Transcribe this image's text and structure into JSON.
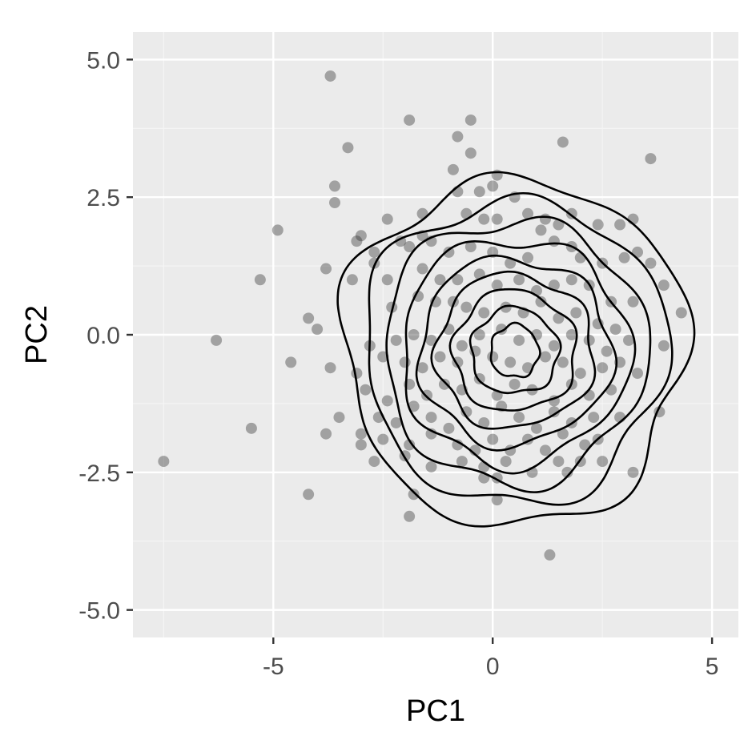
{
  "chart_data": {
    "type": "scatter",
    "xlabel": "PC1",
    "ylabel": "PC2",
    "xlim": [
      -8.2,
      5.6
    ],
    "ylim": [
      -5.5,
      5.5
    ],
    "x_ticks": [
      -5,
      0,
      5
    ],
    "x_tick_labels": [
      "-5",
      "0",
      "5"
    ],
    "y_ticks": [
      -5,
      -2.5,
      0,
      2.5,
      5
    ],
    "y_tick_labels": [
      "-5.0",
      "-2.5",
      "0.0",
      "2.5",
      "5.0"
    ],
    "grid": true,
    "legend": "none",
    "colors": {
      "panel_background": "#ebebeb",
      "grid_major": "#ffffff",
      "grid_minor": "#f5f5f5",
      "points": "#333333",
      "contours": "#000000",
      "tick_label": "#4d4d4d",
      "tick_mark": "#333333"
    },
    "point_opacity": 0.4,
    "density_center": [
      0.5,
      -0.3
    ],
    "contour_levels": [
      {
        "rx": 3.9,
        "ry": 3.15
      },
      {
        "rx": 3.45,
        "ry": 2.75
      },
      {
        "rx": 3.0,
        "ry": 2.4
      },
      {
        "rx": 2.6,
        "ry": 2.05
      },
      {
        "rx": 2.2,
        "ry": 1.7
      },
      {
        "rx": 1.8,
        "ry": 1.4
      },
      {
        "rx": 1.4,
        "ry": 1.1
      },
      {
        "rx": 1.0,
        "ry": 0.78
      },
      {
        "rx": 0.55,
        "ry": 0.48
      }
    ],
    "points": [
      [
        -3.7,
        4.7
      ],
      [
        -1.9,
        3.9
      ],
      [
        -0.5,
        3.9
      ],
      [
        -0.8,
        3.6
      ],
      [
        -0.5,
        3.3
      ],
      [
        -3.3,
        3.4
      ],
      [
        1.6,
        3.5
      ],
      [
        3.6,
        3.2
      ],
      [
        -0.9,
        3.0
      ],
      [
        0.1,
        2.9
      ],
      [
        -3.6,
        2.7
      ],
      [
        -0.3,
        2.6
      ],
      [
        -0.8,
        2.6
      ],
      [
        0.0,
        2.7
      ],
      [
        0.5,
        2.5
      ],
      [
        -3.6,
        2.4
      ],
      [
        -4.9,
        1.9
      ],
      [
        -5.3,
        1.0
      ],
      [
        -3.8,
        1.2
      ],
      [
        -3.0,
        1.8
      ],
      [
        -2.4,
        2.1
      ],
      [
        -1.6,
        2.2
      ],
      [
        -0.6,
        2.2
      ],
      [
        -0.2,
        2.1
      ],
      [
        0.1,
        2.1
      ],
      [
        0.8,
        2.2
      ],
      [
        1.2,
        2.1
      ],
      [
        1.5,
        2.0
      ],
      [
        1.8,
        2.2
      ],
      [
        2.4,
        2.0
      ],
      [
        2.9,
        2.0
      ],
      [
        3.2,
        2.1
      ],
      [
        -3.1,
        1.7
      ],
      [
        -2.7,
        1.5
      ],
      [
        -2.1,
        1.7
      ],
      [
        -1.9,
        1.6
      ],
      [
        -1.6,
        1.8
      ],
      [
        -1.4,
        1.7
      ],
      [
        -1.0,
        1.5
      ],
      [
        -0.5,
        1.6
      ],
      [
        0.0,
        1.5
      ],
      [
        0.4,
        1.3
      ],
      [
        0.8,
        1.4
      ],
      [
        1.1,
        1.9
      ],
      [
        1.4,
        1.7
      ],
      [
        1.8,
        1.6
      ],
      [
        2.0,
        1.4
      ],
      [
        2.5,
        1.3
      ],
      [
        3.0,
        1.4
      ],
      [
        3.3,
        1.5
      ],
      [
        3.6,
        1.3
      ],
      [
        -3.2,
        1.0
      ],
      [
        -2.7,
        1.3
      ],
      [
        -2.4,
        1.0
      ],
      [
        -1.6,
        1.2
      ],
      [
        -1.2,
        1.0
      ],
      [
        -0.8,
        1.0
      ],
      [
        -0.3,
        1.1
      ],
      [
        0.1,
        0.9
      ],
      [
        0.6,
        1.0
      ],
      [
        1.0,
        0.8
      ],
      [
        1.4,
        0.9
      ],
      [
        1.8,
        1.0
      ],
      [
        2.2,
        0.9
      ],
      [
        2.7,
        0.6
      ],
      [
        3.2,
        0.6
      ],
      [
        3.9,
        0.9
      ],
      [
        4.3,
        0.4
      ],
      [
        -4.2,
        0.3
      ],
      [
        -2.3,
        0.5
      ],
      [
        -1.7,
        0.7
      ],
      [
        -1.3,
        0.6
      ],
      [
        -0.9,
        0.6
      ],
      [
        -0.6,
        0.5
      ],
      [
        -0.2,
        0.4
      ],
      [
        0.3,
        0.5
      ],
      [
        0.7,
        0.4
      ],
      [
        1.1,
        0.6
      ],
      [
        1.5,
        0.3
      ],
      [
        1.9,
        0.4
      ],
      [
        2.4,
        0.2
      ],
      [
        2.8,
        0.1
      ],
      [
        -4.0,
        0.1
      ],
      [
        -2.8,
        -0.2
      ],
      [
        -2.2,
        -0.1
      ],
      [
        -1.8,
        0.0
      ],
      [
        -1.4,
        -0.1
      ],
      [
        -1.0,
        0.1
      ],
      [
        -0.7,
        -0.2
      ],
      [
        -0.3,
        0.0
      ],
      [
        0.2,
        0.1
      ],
      [
        0.6,
        -0.1
      ],
      [
        1.0,
        0.0
      ],
      [
        1.4,
        -0.2
      ],
      [
        1.8,
        0.0
      ],
      [
        2.2,
        -0.1
      ],
      [
        2.6,
        -0.3
      ],
      [
        3.1,
        -0.1
      ],
      [
        3.9,
        -0.2
      ],
      [
        -6.3,
        -0.1
      ],
      [
        -4.6,
        -0.5
      ],
      [
        -3.7,
        -0.6
      ],
      [
        -3.1,
        -0.7
      ],
      [
        -2.5,
        -0.4
      ],
      [
        -2.0,
        -0.5
      ],
      [
        -1.6,
        -0.6
      ],
      [
        -1.2,
        -0.4
      ],
      [
        -0.8,
        -0.5
      ],
      [
        -0.4,
        -0.3
      ],
      [
        0.0,
        -0.4
      ],
      [
        0.4,
        -0.5
      ],
      [
        0.8,
        -0.6
      ],
      [
        1.2,
        -0.4
      ],
      [
        1.6,
        -0.5
      ],
      [
        2.0,
        -0.7
      ],
      [
        2.5,
        -0.6
      ],
      [
        2.9,
        -0.5
      ],
      [
        3.3,
        -0.7
      ],
      [
        -2.9,
        -1.0
      ],
      [
        -2.4,
        -1.2
      ],
      [
        -1.9,
        -0.9
      ],
      [
        -1.5,
        -1.1
      ],
      [
        -1.1,
        -0.9
      ],
      [
        -0.7,
        -1.0
      ],
      [
        -0.3,
        -0.8
      ],
      [
        0.1,
        -1.1
      ],
      [
        0.5,
        -0.9
      ],
      [
        0.9,
        -1.0
      ],
      [
        1.4,
        -1.2
      ],
      [
        1.8,
        -0.9
      ],
      [
        2.2,
        -1.1
      ],
      [
        2.7,
        -1.0
      ],
      [
        -5.5,
        -1.7
      ],
      [
        -3.8,
        -1.8
      ],
      [
        -3.5,
        -1.5
      ],
      [
        -3.0,
        -1.8
      ],
      [
        -2.6,
        -1.5
      ],
      [
        -2.2,
        -1.6
      ],
      [
        -1.8,
        -1.3
      ],
      [
        -1.4,
        -1.5
      ],
      [
        -1.0,
        -1.7
      ],
      [
        -0.6,
        -1.4
      ],
      [
        -0.2,
        -1.6
      ],
      [
        0.2,
        -1.3
      ],
      [
        0.6,
        -1.5
      ],
      [
        1.0,
        -1.7
      ],
      [
        1.4,
        -1.4
      ],
      [
        1.8,
        -1.6
      ],
      [
        2.3,
        -1.5
      ],
      [
        2.9,
        -1.5
      ],
      [
        3.8,
        -1.4
      ],
      [
        -7.5,
        -2.3
      ],
      [
        -3.0,
        -2.0
      ],
      [
        -2.5,
        -1.9
      ],
      [
        -1.9,
        -2.0
      ],
      [
        -1.4,
        -1.8
      ],
      [
        -0.8,
        -2.0
      ],
      [
        -0.4,
        -2.1
      ],
      [
        0.0,
        -1.9
      ],
      [
        0.4,
        -2.1
      ],
      [
        0.8,
        -1.9
      ],
      [
        1.2,
        -2.1
      ],
      [
        1.6,
        -1.8
      ],
      [
        2.1,
        -2.0
      ],
      [
        2.4,
        -1.9
      ],
      [
        -2.7,
        -2.3
      ],
      [
        -2.0,
        -2.2
      ],
      [
        -1.4,
        -2.4
      ],
      [
        -0.7,
        -2.3
      ],
      [
        -0.2,
        -2.4
      ],
      [
        0.3,
        -2.3
      ],
      [
        0.9,
        -2.5
      ],
      [
        1.5,
        -2.3
      ],
      [
        2.0,
        -2.3
      ],
      [
        2.5,
        -2.3
      ],
      [
        3.2,
        -2.5
      ],
      [
        -0.2,
        -2.6
      ],
      [
        0.1,
        -2.6
      ],
      [
        1.7,
        -2.5
      ],
      [
        -4.2,
        -2.9
      ],
      [
        -1.8,
        -2.9
      ],
      [
        0.1,
        -3.0
      ],
      [
        -1.9,
        -3.3
      ],
      [
        1.3,
        -4.0
      ]
    ]
  }
}
